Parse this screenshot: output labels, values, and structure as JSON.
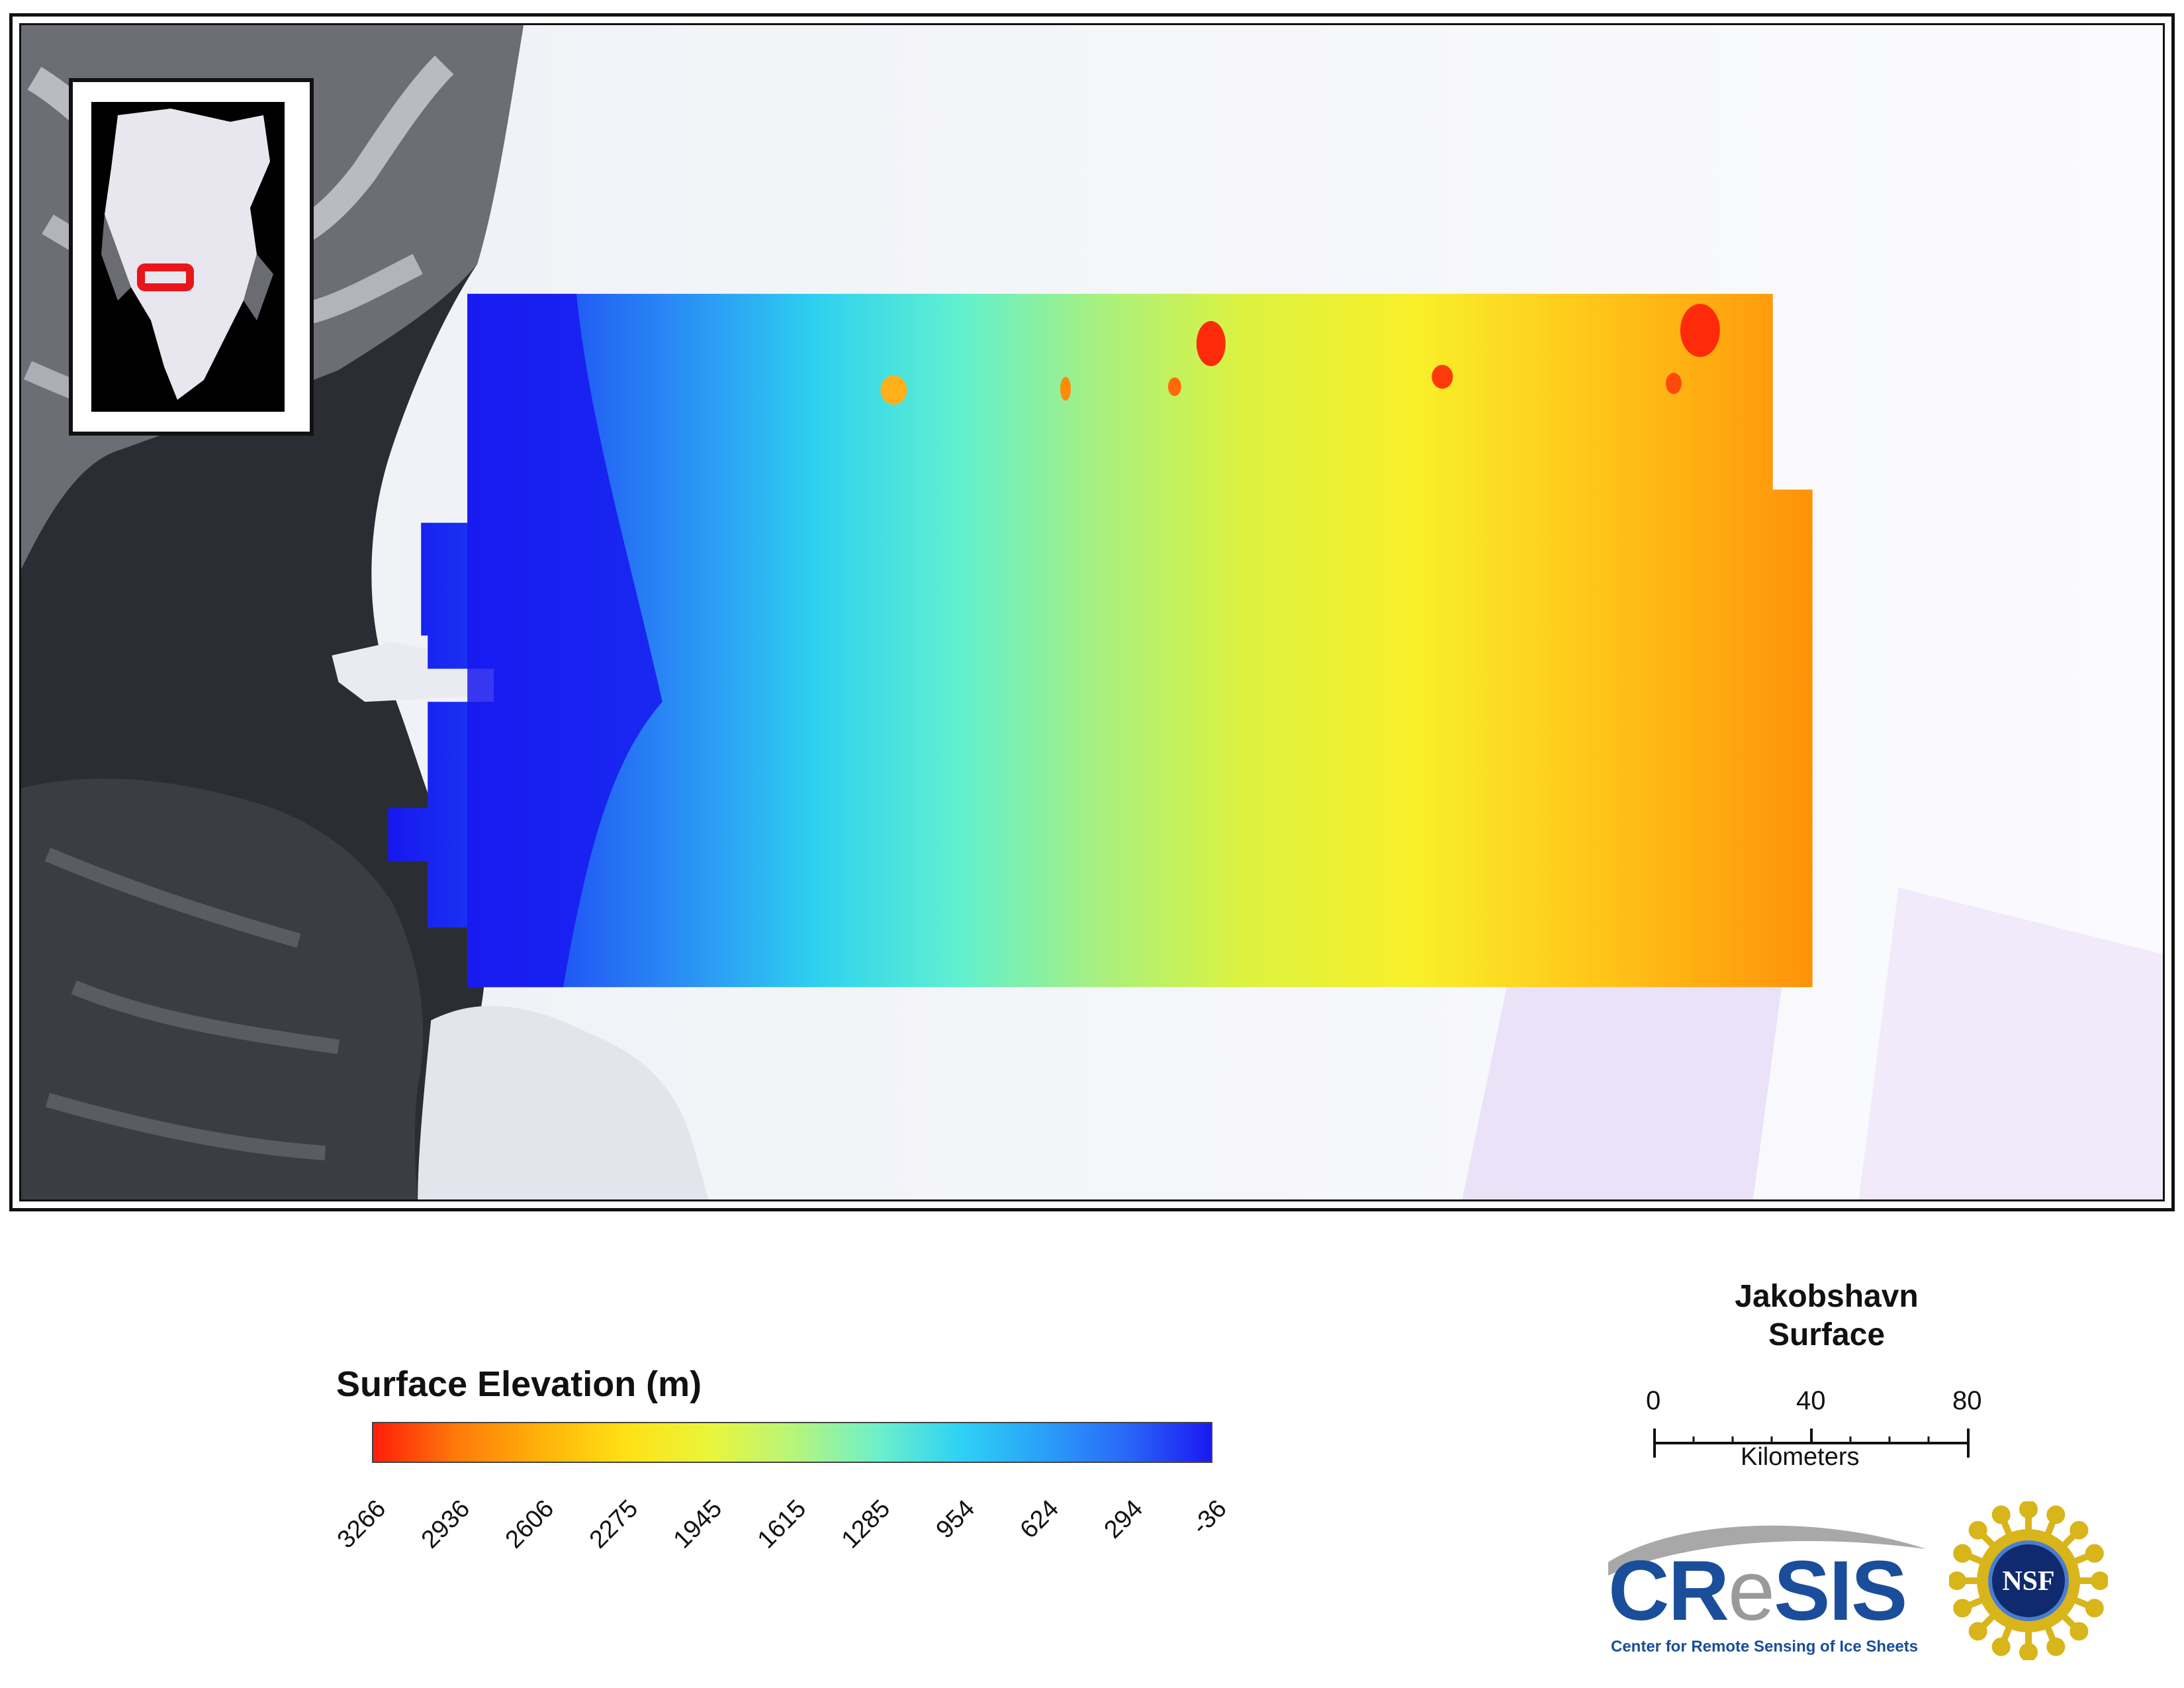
{
  "map": {
    "inset_label": "",
    "study_area_color": "#e8161b"
  },
  "legend": {
    "title": "Surface Elevation (m)",
    "ticks": [
      "3266",
      "2936",
      "2606",
      "2275",
      "1945",
      "1615",
      "1285",
      "954",
      "624",
      "294",
      "-36"
    ],
    "colors": [
      "#ff1e0a",
      "#ff7a0a",
      "#ffb20a",
      "#ffe015",
      "#eaf53a",
      "#b8f57a",
      "#6ff0c8",
      "#2ed2f5",
      "#2aa0f8",
      "#2a66f8",
      "#1a1af2"
    ]
  },
  "title_block": {
    "line1": "Jakobshavn",
    "line2": "Surface"
  },
  "scale_bar": {
    "labels": [
      "0",
      "40",
      "80"
    ],
    "units": "Kilometers"
  },
  "logos": {
    "cresis_name_part1": "CR",
    "cresis_name_part2": "e",
    "cresis_name_part3": "SIS",
    "cresis_subtitle": "Center for Remote Sensing of Ice Sheets",
    "nsf_label": "NSF"
  }
}
